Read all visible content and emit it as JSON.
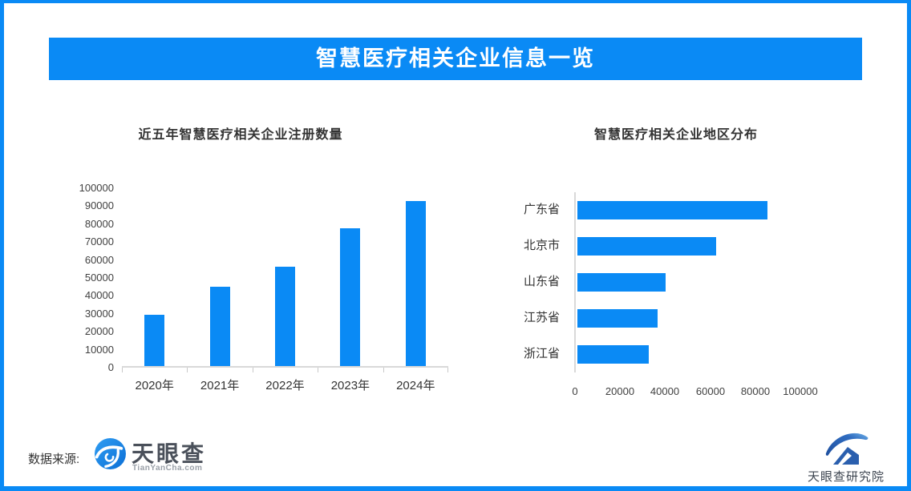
{
  "banner": {
    "title": "智慧医疗相关企业信息一览"
  },
  "colors": {
    "primary_blue": "#0a8af5",
    "axis_line": "#d9d9d9",
    "chart_text": "#404040",
    "logo_dark_blue": "#2a5fae"
  },
  "chart_data": [
    {
      "type": "bar",
      "title": "近五年智慧医疗相关企业注册数量",
      "categories": [
        "2020年",
        "2021年",
        "2022年",
        "2023年",
        "2024年"
      ],
      "values": [
        28500,
        44000,
        55500,
        77000,
        92000
      ],
      "xlabel": "",
      "ylabel": "",
      "ylim": [
        0,
        100000
      ],
      "yticks": [
        0,
        10000,
        20000,
        30000,
        40000,
        50000,
        60000,
        70000,
        80000,
        90000,
        100000
      ],
      "bar_color": "#0a8af5",
      "grid": false,
      "legend": "none"
    },
    {
      "type": "bar-horizontal",
      "title": "智慧医疗相关企业地区分布",
      "categories": [
        "广东省",
        "北京市",
        "山东省",
        "江苏省",
        "浙江省"
      ],
      "values": [
        84500,
        61500,
        39000,
        35500,
        31500
      ],
      "xlabel": "",
      "ylabel": "",
      "xlim": [
        0,
        120000
      ],
      "xticks": [
        0,
        20000,
        40000,
        60000,
        80000,
        100000
      ],
      "bar_color": "#0a8af5",
      "grid": false,
      "legend": "none"
    }
  ],
  "footer": {
    "source_label": "数据来源:",
    "tianyancha": {
      "name": "天眼查",
      "domain": "TianYanCha.com"
    },
    "institute": {
      "name": "天眼查研究院"
    }
  }
}
